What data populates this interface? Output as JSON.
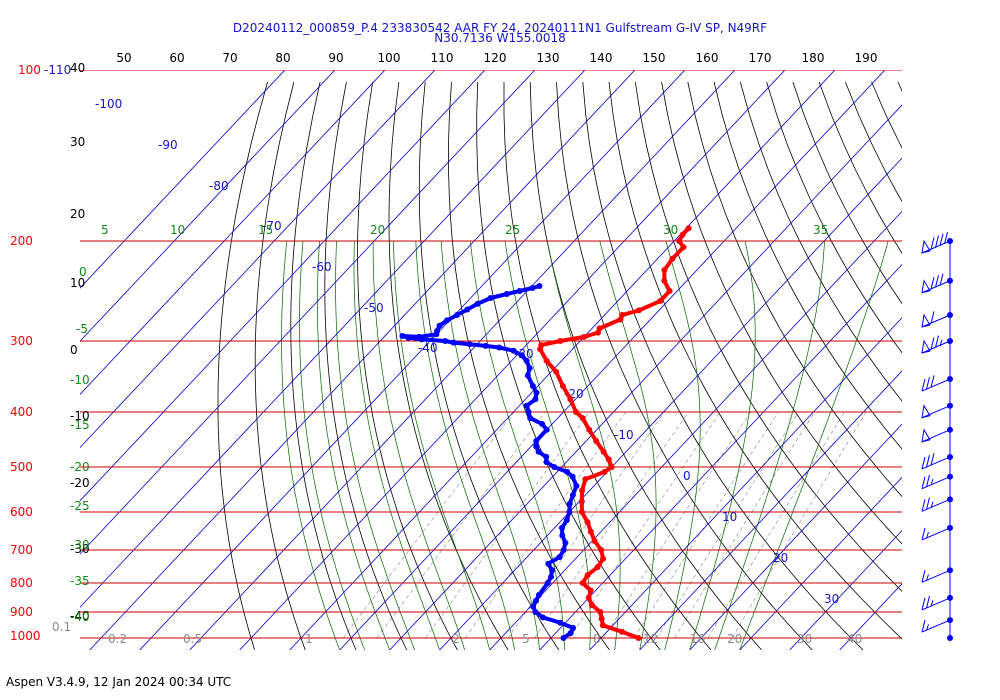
{
  "title_line1": "D20240112_000859_P.4 233830542 AAR FY 24, 20240111N1 Gulfstream G-IV SP, N49RF",
  "title_line2": "N30.7136 W155.0018",
  "footer": "Aspen V3.4.9, 12 Jan 2024  00:34 UTC",
  "colors": {
    "temperature": "#ff0000",
    "dewpoint": "#0000ff",
    "isobar": "#cc0000",
    "isotherm": "#0000cc",
    "dry_adiabat": "#000000",
    "moist_adiabat": "#006400",
    "mixing_ratio": "#888888",
    "wind": "#0000ff"
  },
  "chart_data": {
    "type": "skew-t",
    "pressure_axis": {
      "labels": [
        "100-110",
        "200",
        "300",
        "400",
        "500",
        "600",
        "700",
        "800",
        "900",
        "1000"
      ],
      "values": [
        100,
        200,
        300,
        400,
        500,
        600,
        700,
        800,
        900,
        1000
      ],
      "scale": "log"
    },
    "top_axis": {
      "labels": [
        "50",
        "60",
        "70",
        "80",
        "90",
        "100",
        "110",
        "120",
        "130",
        "140",
        "150",
        "160",
        "170",
        "180",
        "190"
      ]
    },
    "isotherm_labels": [
      "-100",
      "-90",
      "-80",
      "-70",
      "-60",
      "-50",
      "-40",
      "-30",
      "-20",
      "-10",
      "0",
      "10",
      "20",
      "30"
    ],
    "dry_adiabat_labels": [
      "40",
      "30",
      "20",
      "10",
      "0",
      "-10",
      "-20",
      "-30",
      "-40"
    ],
    "moist_adiabat_labels": [
      "5",
      "10",
      "15",
      "20",
      "25",
      "30",
      "35",
      "0",
      "-5",
      "-10",
      "-15",
      "-20",
      "-25",
      "-30",
      "-35",
      "-40"
    ],
    "mixing_ratio_labels": [
      "0.1",
      "0.2",
      "0.5",
      "1",
      "2",
      "5",
      "8",
      "12",
      "16",
      "20",
      "30",
      "40"
    ],
    "series": [
      {
        "name": "Temperature",
        "points": [
          [
            1000,
            17.5
          ],
          [
            975,
            13.0
          ],
          [
            950,
            8.0
          ],
          [
            925,
            6.5
          ],
          [
            900,
            5.0
          ],
          [
            875,
            2.0
          ],
          [
            850,
            0.0
          ],
          [
            825,
            -1.0
          ],
          [
            800,
            -4.0
          ],
          [
            775,
            -4.5
          ],
          [
            750,
            -4.0
          ],
          [
            725,
            -4.5
          ],
          [
            700,
            -6.5
          ],
          [
            675,
            -9.5
          ],
          [
            650,
            -12.0
          ],
          [
            625,
            -14.5
          ],
          [
            600,
            -17.5
          ],
          [
            575,
            -19.5
          ],
          [
            550,
            -21.5
          ],
          [
            525,
            -23.0
          ],
          [
            510,
            -20.5
          ],
          [
            500,
            -20.0
          ],
          [
            485,
            -22.0
          ],
          [
            470,
            -24.5
          ],
          [
            450,
            -28.0
          ],
          [
            430,
            -31.5
          ],
          [
            410,
            -35.0
          ],
          [
            400,
            -37.5
          ],
          [
            380,
            -41.0
          ],
          [
            360,
            -45.0
          ],
          [
            340,
            -49.0
          ],
          [
            325,
            -53.0
          ],
          [
            310,
            -56.5
          ],
          [
            305,
            -57.0
          ],
          [
            300,
            -54.0
          ],
          [
            295,
            -50.0
          ],
          [
            290,
            -48.0
          ],
          [
            285,
            -48.5
          ],
          [
            275,
            -46.0
          ],
          [
            270,
            -46.5
          ],
          [
            265,
            -44.0
          ],
          [
            255,
            -41.5
          ],
          [
            245,
            -41.5
          ],
          [
            235,
            -44.5
          ],
          [
            225,
            -46.5
          ],
          [
            215,
            -47.0
          ],
          [
            205,
            -47.0
          ],
          [
            200,
            -49.0
          ],
          [
            195,
            -49.5
          ],
          [
            190,
            -49.5
          ]
        ]
      },
      {
        "name": "Dewpoint",
        "points": [
          [
            1000,
            2.5
          ],
          [
            980,
            3.0
          ],
          [
            960,
            2.5
          ],
          [
            940,
            -1.0
          ],
          [
            920,
            -5.5
          ],
          [
            900,
            -8.0
          ],
          [
            880,
            -9.5
          ],
          [
            860,
            -10.0
          ],
          [
            840,
            -10.5
          ],
          [
            800,
            -11.0
          ],
          [
            780,
            -11.5
          ],
          [
            760,
            -12.5
          ],
          [
            740,
            -14.5
          ],
          [
            720,
            -13.5
          ],
          [
            700,
            -14.0
          ],
          [
            680,
            -15.0
          ],
          [
            660,
            -17.0
          ],
          [
            640,
            -18.5
          ],
          [
            620,
            -19.0
          ],
          [
            600,
            -20.0
          ],
          [
            580,
            -21.5
          ],
          [
            560,
            -22.5
          ],
          [
            540,
            -23.5
          ],
          [
            520,
            -26.0
          ],
          [
            510,
            -28.0
          ],
          [
            500,
            -31.5
          ],
          [
            490,
            -34.0
          ],
          [
            480,
            -35.0
          ],
          [
            470,
            -37.5
          ],
          [
            460,
            -39.0
          ],
          [
            450,
            -40.0
          ],
          [
            430,
            -40.0
          ],
          [
            420,
            -42.0
          ],
          [
            410,
            -45.5
          ],
          [
            400,
            -47.0
          ],
          [
            390,
            -48.5
          ],
          [
            380,
            -48.0
          ],
          [
            370,
            -49.0
          ],
          [
            360,
            -51.0
          ],
          [
            345,
            -54.0
          ],
          [
            335,
            -55.0
          ],
          [
            325,
            -57.0
          ],
          [
            318,
            -59.0
          ],
          [
            312,
            -61.5
          ],
          [
            308,
            -65.0
          ],
          [
            306,
            -68.0
          ],
          [
            304,
            -71.5
          ],
          [
            302,
            -75.0
          ],
          [
            300,
            -77.0
          ],
          [
            298,
            -82.0
          ],
          [
            296,
            -85.0
          ],
          [
            294,
            -86.5
          ],
          [
            295,
            -83.0
          ],
          [
            292,
            -80.0
          ],
          [
            288,
            -80.5
          ],
          [
            282,
            -81.0
          ],
          [
            276,
            -80.5
          ],
          [
            270,
            -79.5
          ],
          [
            264,
            -78.5
          ],
          [
            258,
            -77.5
          ],
          [
            252,
            -76.0
          ],
          [
            248,
            -73.5
          ],
          [
            245,
            -71.5
          ],
          [
            242,
            -69.5
          ],
          [
            240,
            -68.5
          ]
        ]
      }
    ],
    "wind_barbs": [
      {
        "p": 200,
        "speed_kt": 90
      },
      {
        "p": 235,
        "speed_kt": 80
      },
      {
        "p": 270,
        "speed_kt": 60
      },
      {
        "p": 300,
        "speed_kt": 75
      },
      {
        "p": 350,
        "speed_kt": 30
      },
      {
        "p": 390,
        "speed_kt": 50
      },
      {
        "p": 430,
        "speed_kt": 50
      },
      {
        "p": 480,
        "speed_kt": 30
      },
      {
        "p": 520,
        "speed_kt": 25
      },
      {
        "p": 570,
        "speed_kt": 25
      },
      {
        "p": 640,
        "speed_kt": 15
      },
      {
        "p": 760,
        "speed_kt": 15
      },
      {
        "p": 850,
        "speed_kt": 25
      },
      {
        "p": 930,
        "speed_kt": 15
      },
      {
        "p": 1000,
        "speed_kt": 0
      }
    ]
  }
}
